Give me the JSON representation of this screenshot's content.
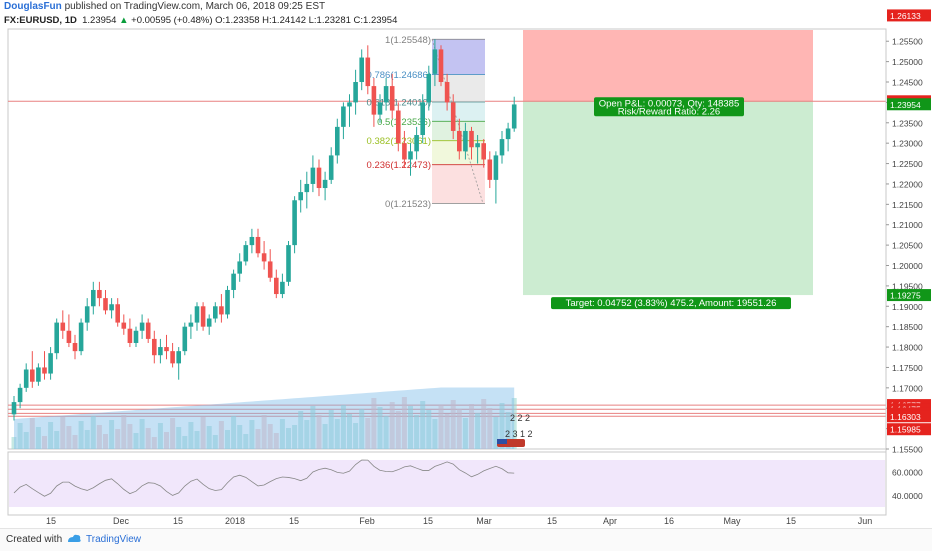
{
  "header": {
    "author": "DouglasFun",
    "published": "published on TradingView.com, March 06, 2018 09:25 EST",
    "symbol": "FX:EURUSD, 1D",
    "last": "1.23954",
    "change": "+0.00595 (+0.48%)",
    "ohlc": "O:1.23358 H:1.24142 L:1.23281 C:1.23954"
  },
  "footer": {
    "created_with": "Created with",
    "brand": "TradingView"
  },
  "colors": {
    "up": "#26a69a",
    "down": "#ef5350",
    "profit_zone": "#ccecd1",
    "loss_zone": "#ffb6b4",
    "rsi": "#f1e7fb",
    "label_red": "#e5231e",
    "label_green": "#109618"
  },
  "chart_data": {
    "type": "candlestick",
    "symbol": "FX:EURUSD",
    "timeframe": "1D",
    "y_ticks": [
      "1.15500",
      "1.16000",
      "1.16500",
      "1.17000",
      "1.17500",
      "1.18000",
      "1.18500",
      "1.19000",
      "1.19500",
      "1.20000",
      "1.20500",
      "1.21000",
      "1.21500",
      "1.22000",
      "1.22500",
      "1.23000",
      "1.23500",
      "1.24000",
      "1.24500",
      "1.25000",
      "1.25500"
    ],
    "x_ticks": [
      "15",
      "Dec",
      "15",
      "2018",
      "15",
      "Feb",
      "15",
      "Mar",
      "15",
      "Apr",
      "16",
      "May",
      "15",
      "Jun"
    ],
    "price_labels": [
      {
        "text": "1.26133",
        "color": "#e5231e"
      },
      {
        "text": "1.24027",
        "color": "#e5231e"
      },
      {
        "text": "1.24012",
        "color": "#e5231e"
      },
      {
        "text": "1.23954",
        "color": "#109618"
      },
      {
        "text": "1.19275",
        "color": "#109618"
      },
      {
        "text": "1.16577",
        "color": "#e5231e"
      },
      {
        "text": "1.16475",
        "color": "#e5231e"
      },
      {
        "text": "1.16374",
        "color": "#e5231e"
      },
      {
        "text": "1.16303",
        "color": "#e5231e"
      },
      {
        "text": "1.15985",
        "color": "#e5231e"
      }
    ],
    "fibonacci": [
      {
        "ratio": "1",
        "price": 1.25548,
        "label": "1(1.25548)",
        "color": "#808080"
      },
      {
        "ratio": "0.786",
        "price": 1.24686,
        "label": "0.786(1.24686)",
        "color": "#4a90c4"
      },
      {
        "ratio": "0.618",
        "price": 1.2401,
        "label": "0.618(1.24010)",
        "color": "#4a8a8a"
      },
      {
        "ratio": "0.5",
        "price": 1.23536,
        "label": "0.5(1.23536)",
        "color": "#48a848"
      },
      {
        "ratio": "0.382",
        "price": 1.23061,
        "label": "0.382(1.23061)",
        "color": "#9abf22"
      },
      {
        "ratio": "0.236",
        "price": 1.22473,
        "label": "0.236(1.22473)",
        "color": "#d03030"
      },
      {
        "ratio": "0",
        "price": 1.21523,
        "label": "0(1.21523)",
        "color": "#808080"
      }
    ],
    "position": {
      "entry": 1.24027,
      "stop": 1.26133,
      "target": 1.19275,
      "open_pl_text": "Open P&L: 0.00073, Qty: 148385",
      "rr_text": "Risk/Reward Ratio: 2.26",
      "target_text": "Target: 0.04752 (3.83%) 475.2, Amount: 19551.26"
    },
    "candles": [
      [
        1.1635,
        1.168,
        1.162,
        1.1665
      ],
      [
        1.1665,
        1.171,
        1.165,
        1.17
      ],
      [
        1.17,
        1.176,
        1.169,
        1.1745
      ],
      [
        1.1745,
        1.179,
        1.17,
        1.1715
      ],
      [
        1.1715,
        1.176,
        1.1705,
        1.175
      ],
      [
        1.175,
        1.179,
        1.172,
        1.1735
      ],
      [
        1.1735,
        1.18,
        1.172,
        1.1785
      ],
      [
        1.1785,
        1.187,
        1.177,
        1.186
      ],
      [
        1.186,
        1.189,
        1.182,
        1.184
      ],
      [
        1.184,
        1.188,
        1.18,
        1.181
      ],
      [
        1.181,
        1.183,
        1.177,
        1.179
      ],
      [
        1.179,
        1.187,
        1.178,
        1.186
      ],
      [
        1.186,
        1.192,
        1.184,
        1.19
      ],
      [
        1.19,
        1.196,
        1.188,
        1.194
      ],
      [
        1.194,
        1.196,
        1.19,
        1.192
      ],
      [
        1.192,
        1.194,
        1.188,
        1.189
      ],
      [
        1.189,
        1.192,
        1.187,
        1.1905
      ],
      [
        1.1905,
        1.192,
        1.185,
        1.186
      ],
      [
        1.186,
        1.188,
        1.183,
        1.1845
      ],
      [
        1.1845,
        1.187,
        1.18,
        1.181
      ],
      [
        1.181,
        1.185,
        1.18,
        1.184
      ],
      [
        1.184,
        1.188,
        1.182,
        1.186
      ],
      [
        1.186,
        1.187,
        1.181,
        1.182
      ],
      [
        1.182,
        1.184,
        1.176,
        1.178
      ],
      [
        1.178,
        1.182,
        1.176,
        1.18
      ],
      [
        1.18,
        1.183,
        1.177,
        1.179
      ],
      [
        1.179,
        1.181,
        1.175,
        1.176
      ],
      [
        1.176,
        1.18,
        1.172,
        1.179
      ],
      [
        1.179,
        1.186,
        1.178,
        1.185
      ],
      [
        1.185,
        1.188,
        1.182,
        1.186
      ],
      [
        1.186,
        1.191,
        1.184,
        1.19
      ],
      [
        1.19,
        1.191,
        1.184,
        1.185
      ],
      [
        1.185,
        1.188,
        1.183,
        1.187
      ],
      [
        1.187,
        1.191,
        1.186,
        1.19
      ],
      [
        1.19,
        1.193,
        1.186,
        1.188
      ],
      [
        1.188,
        1.195,
        1.187,
        1.194
      ],
      [
        1.194,
        1.199,
        1.192,
        1.198
      ],
      [
        1.198,
        1.203,
        1.196,
        1.201
      ],
      [
        1.201,
        1.206,
        1.2,
        1.205
      ],
      [
        1.205,
        1.209,
        1.203,
        1.207
      ],
      [
        1.207,
        1.209,
        1.202,
        1.203
      ],
      [
        1.203,
        1.206,
        1.199,
        1.201
      ],
      [
        1.201,
        1.204,
        1.196,
        1.197
      ],
      [
        1.197,
        1.199,
        1.192,
        1.193
      ],
      [
        1.193,
        1.198,
        1.192,
        1.196
      ],
      [
        1.196,
        1.206,
        1.195,
        1.205
      ],
      [
        1.205,
        1.217,
        1.203,
        1.216
      ],
      [
        1.216,
        1.221,
        1.213,
        1.218
      ],
      [
        1.218,
        1.223,
        1.214,
        1.22
      ],
      [
        1.22,
        1.227,
        1.218,
        1.224
      ],
      [
        1.224,
        1.226,
        1.217,
        1.219
      ],
      [
        1.219,
        1.223,
        1.216,
        1.221
      ],
      [
        1.221,
        1.229,
        1.22,
        1.227
      ],
      [
        1.227,
        1.236,
        1.225,
        1.234
      ],
      [
        1.234,
        1.24,
        1.231,
        1.239
      ],
      [
        1.239,
        1.242,
        1.234,
        1.24
      ],
      [
        1.24,
        1.248,
        1.237,
        1.245
      ],
      [
        1.245,
        1.253,
        1.243,
        1.251
      ],
      [
        1.251,
        1.254,
        1.242,
        1.244
      ],
      [
        1.244,
        1.246,
        1.234,
        1.237
      ],
      [
        1.237,
        1.242,
        1.235,
        1.24
      ],
      [
        1.24,
        1.246,
        1.238,
        1.244
      ],
      [
        1.244,
        1.247,
        1.236,
        1.238
      ],
      [
        1.238,
        1.24,
        1.228,
        1.23
      ],
      [
        1.23,
        1.233,
        1.224,
        1.226
      ],
      [
        1.226,
        1.23,
        1.222,
        1.228
      ],
      [
        1.228,
        1.234,
        1.226,
        1.232
      ],
      [
        1.232,
        1.242,
        1.23,
        1.24
      ],
      [
        1.24,
        1.249,
        1.238,
        1.247
      ],
      [
        1.247,
        1.2555,
        1.244,
        1.253
      ],
      [
        1.253,
        1.254,
        1.244,
        1.245
      ],
      [
        1.245,
        1.247,
        1.238,
        1.24
      ],
      [
        1.24,
        1.242,
        1.231,
        1.233
      ],
      [
        1.233,
        1.236,
        1.226,
        1.228
      ],
      [
        1.228,
        1.235,
        1.226,
        1.233
      ],
      [
        1.233,
        1.234,
        1.226,
        1.229
      ],
      [
        1.229,
        1.232,
        1.225,
        1.23
      ],
      [
        1.23,
        1.231,
        1.224,
        1.226
      ],
      [
        1.226,
        1.228,
        1.219,
        1.221
      ],
      [
        1.221,
        1.228,
        1.2152,
        1.227
      ],
      [
        1.227,
        1.233,
        1.225,
        1.231
      ],
      [
        1.231,
        1.235,
        1.228,
        1.2336
      ],
      [
        1.2336,
        1.2414,
        1.2328,
        1.2395
      ]
    ],
    "rsi": {
      "levels": [
        "60.0000",
        "40.0000"
      ]
    }
  }
}
